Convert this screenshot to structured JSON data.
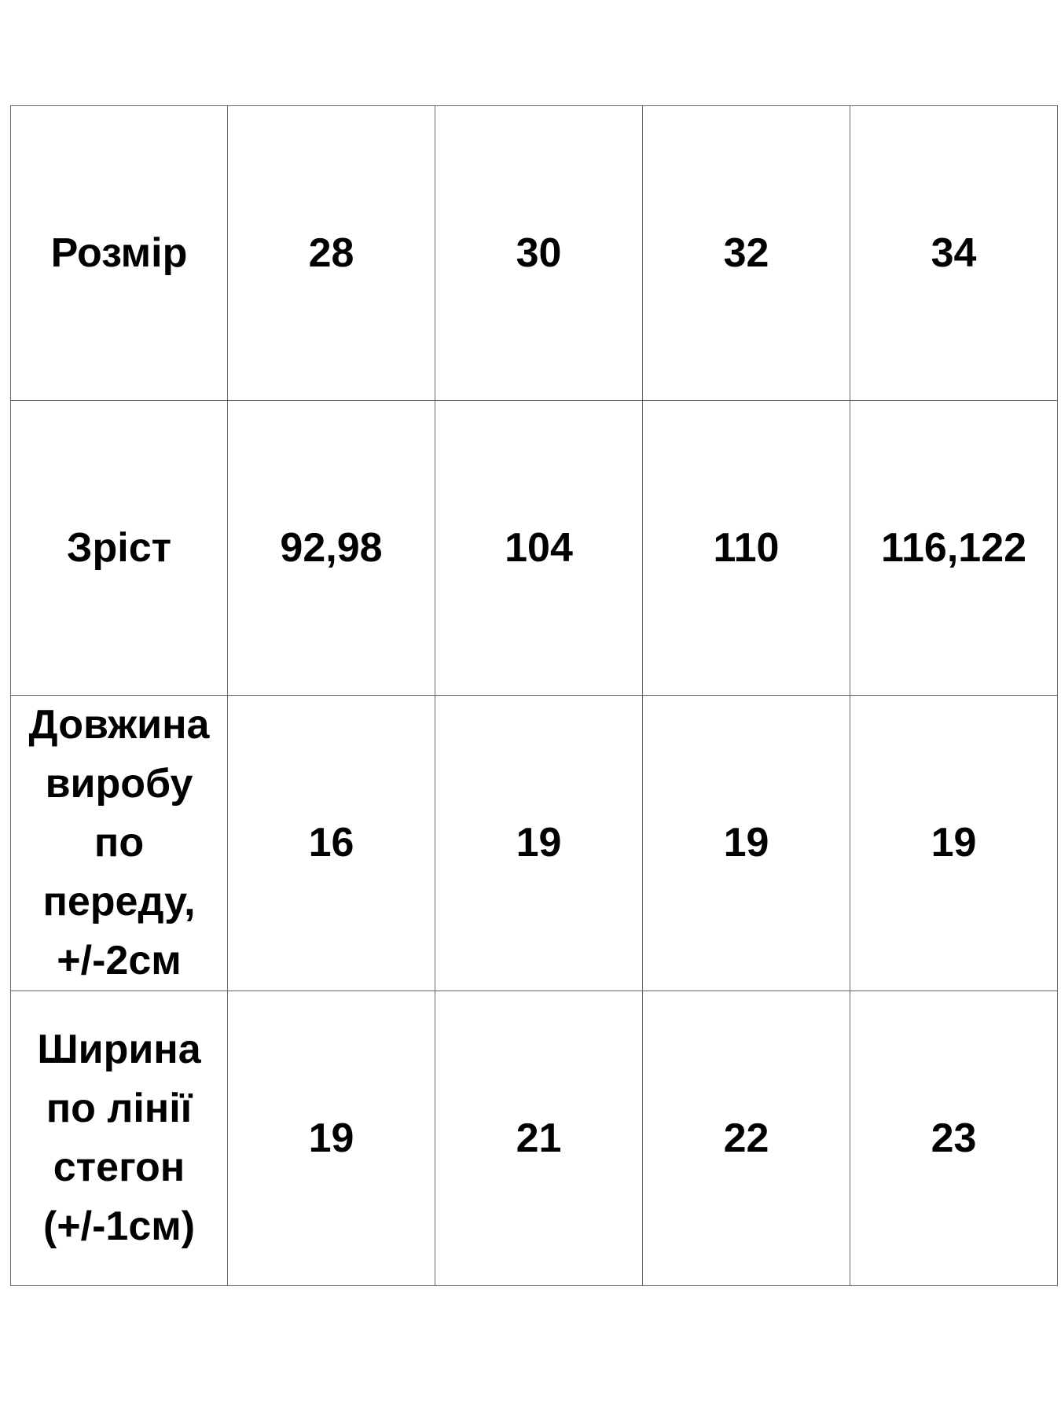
{
  "table": {
    "rows": [
      {
        "label": "Розмір",
        "values": [
          "28",
          "30",
          "32",
          "34"
        ]
      },
      {
        "label": "Зріст",
        "values": [
          "92,98",
          "104",
          "110",
          "116,122"
        ]
      },
      {
        "label": "Довжина виробу по переду, +/-2см",
        "values": [
          "16",
          "19",
          "19",
          "19"
        ]
      },
      {
        "label": "Ширина по лінії стегон (+/-1см)",
        "values": [
          "19",
          "21",
          "22",
          "23"
        ]
      }
    ]
  }
}
